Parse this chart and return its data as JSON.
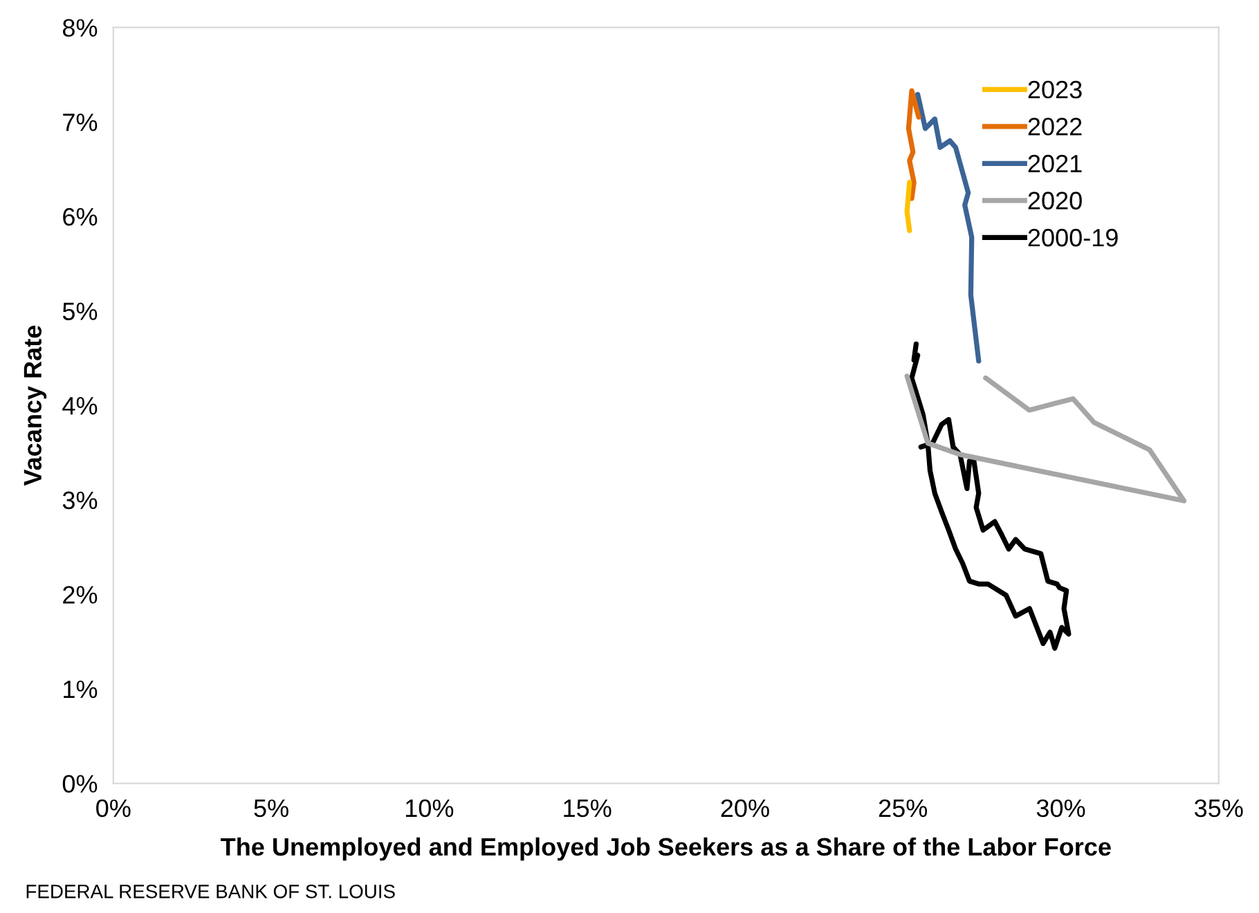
{
  "chart_data": {
    "type": "line",
    "xlabel": "The Unemployed and Employed Job Seekers as a Share of the Labor Force",
    "ylabel": "Vacancy Rate",
    "xlim": [
      0,
      35
    ],
    "xticks": [
      {
        "value": 0,
        "label": "0%"
      },
      {
        "value": 5,
        "label": "5%"
      },
      {
        "value": 10,
        "label": "10%"
      },
      {
        "value": 15,
        "label": "15%"
      },
      {
        "value": 20,
        "label": "20%"
      },
      {
        "value": 25,
        "label": "25%"
      },
      {
        "value": 30,
        "label": "30%"
      },
      {
        "value": 35,
        "label": "35%"
      }
    ],
    "ylim": [
      0,
      8
    ],
    "yticks": [
      {
        "value": 0,
        "label": "0%"
      },
      {
        "value": 1,
        "label": "1%"
      },
      {
        "value": 2,
        "label": "2%"
      },
      {
        "value": 3,
        "label": "3%"
      },
      {
        "value": 4,
        "label": "4%"
      },
      {
        "value": 5,
        "label": "5%"
      },
      {
        "value": 6,
        "label": "6%"
      },
      {
        "value": 7,
        "label": "7%"
      },
      {
        "value": 8,
        "label": "8%"
      }
    ],
    "grid": false,
    "legend": "top right",
    "marker": "none",
    "line_style": "solid",
    "annotations": [
      "FEDERAL RESERVE BANK OF ST. LOUIS"
    ],
    "series": [
      {
        "name": "2023",
        "color": "#ffc000",
        "x": [
          25.21,
          25.13,
          25.21
        ],
        "values": [
          6.36,
          6.05,
          5.85
        ]
      },
      {
        "name": "2022",
        "color": "#e36c09",
        "x": [
          25.5,
          25.28,
          25.18,
          25.32,
          25.21,
          25.35,
          25.28
        ],
        "values": [
          7.05,
          7.33,
          6.93,
          6.68,
          6.59,
          6.36,
          6.19
        ]
      },
      {
        "name": "2021",
        "color": "#3b6496",
        "x": [
          27.4,
          27.15,
          27.18,
          26.96,
          27.07,
          26.67,
          26.49,
          26.18,
          26.01,
          25.71,
          25.47
        ],
        "values": [
          4.47,
          5.17,
          5.78,
          6.12,
          6.25,
          6.73,
          6.8,
          6.73,
          7.03,
          6.93,
          7.29
        ]
      },
      {
        "name": "2020",
        "color": "#a6a6a6",
        "x": [
          25.13,
          25.79,
          26.81,
          33.9,
          32.81,
          31.05,
          30.39,
          29.0,
          27.62
        ],
        "values": [
          4.31,
          3.6,
          3.48,
          2.99,
          3.53,
          3.82,
          4.07,
          3.95,
          4.29
        ]
      },
      {
        "name": "2000-19",
        "color": "#000000",
        "x": [
          25.42,
          25.35,
          25.47,
          25.28,
          25.42,
          25.64,
          25.79,
          25.86,
          26.01,
          26.23,
          26.45,
          26.67,
          26.89,
          27.11,
          27.4,
          27.69,
          28.27,
          28.57,
          29.01,
          29.44,
          29.66,
          29.81,
          30.03,
          30.25,
          30.1,
          30.18,
          29.96,
          29.88,
          29.59,
          29.37,
          28.86,
          28.57,
          28.35,
          28.13,
          27.91,
          27.54,
          27.32,
          27.4,
          27.25,
          27.11,
          27.03,
          26.81,
          26.59,
          26.45,
          26.23,
          25.94,
          25.57
        ],
        "values": [
          4.65,
          4.48,
          4.53,
          4.29,
          4.14,
          3.9,
          3.6,
          3.31,
          3.07,
          2.87,
          2.68,
          2.48,
          2.33,
          2.14,
          2.11,
          2.11,
          1.99,
          1.77,
          1.85,
          1.48,
          1.6,
          1.43,
          1.65,
          1.58,
          1.85,
          2.04,
          2.07,
          2.11,
          2.14,
          2.43,
          2.48,
          2.58,
          2.48,
          2.63,
          2.77,
          2.68,
          2.92,
          3.07,
          3.41,
          3.41,
          3.12,
          3.48,
          3.56,
          3.85,
          3.8,
          3.6,
          3.56
        ]
      }
    ]
  }
}
